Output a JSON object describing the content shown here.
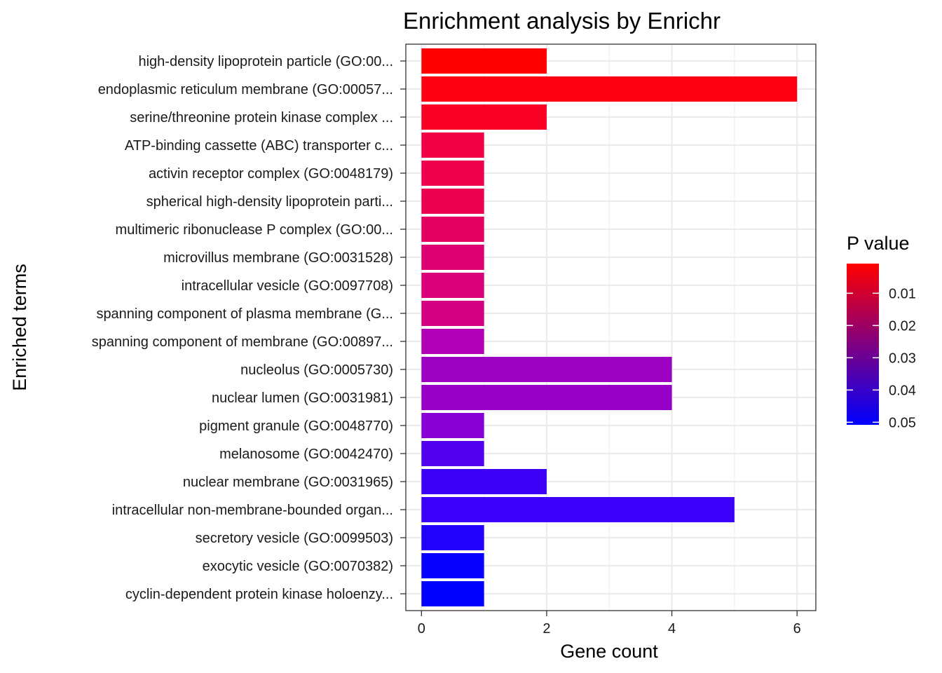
{
  "chart_data": {
    "type": "bar",
    "orientation": "horizontal",
    "title": "Enrichment analysis by Enrichr",
    "xlabel": "Gene count",
    "ylabel": "Enriched terms",
    "xlim": [
      -0.25,
      6.3
    ],
    "x_ticks": [
      0,
      2,
      4,
      6
    ],
    "grid": true,
    "legend_position": "right",
    "legend": {
      "title": "P value",
      "ticks": [
        0.01,
        0.02,
        0.03,
        0.04,
        0.05
      ],
      "tick_labels": [
        "0.01",
        "0.02",
        "0.03",
        "0.04",
        "0.05"
      ],
      "range": [
        0.0008,
        0.0508
      ],
      "color_low": "#FF0000",
      "color_high": "#0000FF"
    },
    "categories": [
      "high-density lipoprotein particle (GO:00...",
      "endoplasmic reticulum membrane (GO:00057...",
      "serine/threonine protein kinase complex ...",
      "ATP-binding cassette (ABC) transporter c...",
      "activin receptor complex (GO:0048179)",
      "spherical high-density lipoprotein parti...",
      "multimeric ribonuclease P complex (GO:00...",
      "microvillus membrane (GO:0031528)",
      "intracellular vesicle (GO:0097708)",
      "spanning component of plasma membrane (G...",
      "spanning component of membrane (GO:00897...",
      "nucleolus (GO:0005730)",
      "nuclear lumen (GO:0031981)",
      "pigment granule (GO:0048770)",
      "melanosome (GO:0042470)",
      "nuclear membrane (GO:0031965)",
      "intracellular non-membrane-bounded organ...",
      "secretory vesicle (GO:0099503)",
      "exocytic vesicle (GO:0070382)",
      "cyclin-dependent protein kinase holoenzy..."
    ],
    "values": [
      2,
      6,
      2,
      1,
      1,
      1,
      1,
      1,
      1,
      1,
      1,
      4,
      4,
      1,
      1,
      2,
      5,
      1,
      1,
      1
    ],
    "bar_colors": [
      "#FF0000",
      "#FF0012",
      "#F90025",
      "#F20045",
      "#EE004F",
      "#EC0050",
      "#E30060",
      "#DD0070",
      "#D90078",
      "#D40081",
      "#B000B5",
      "#9C00C1",
      "#9800C8",
      "#8800D6",
      "#5000EE",
      "#3C00F6",
      "#3C00FA",
      "#2200FA",
      "#0800FF",
      "#0000FF"
    ]
  }
}
